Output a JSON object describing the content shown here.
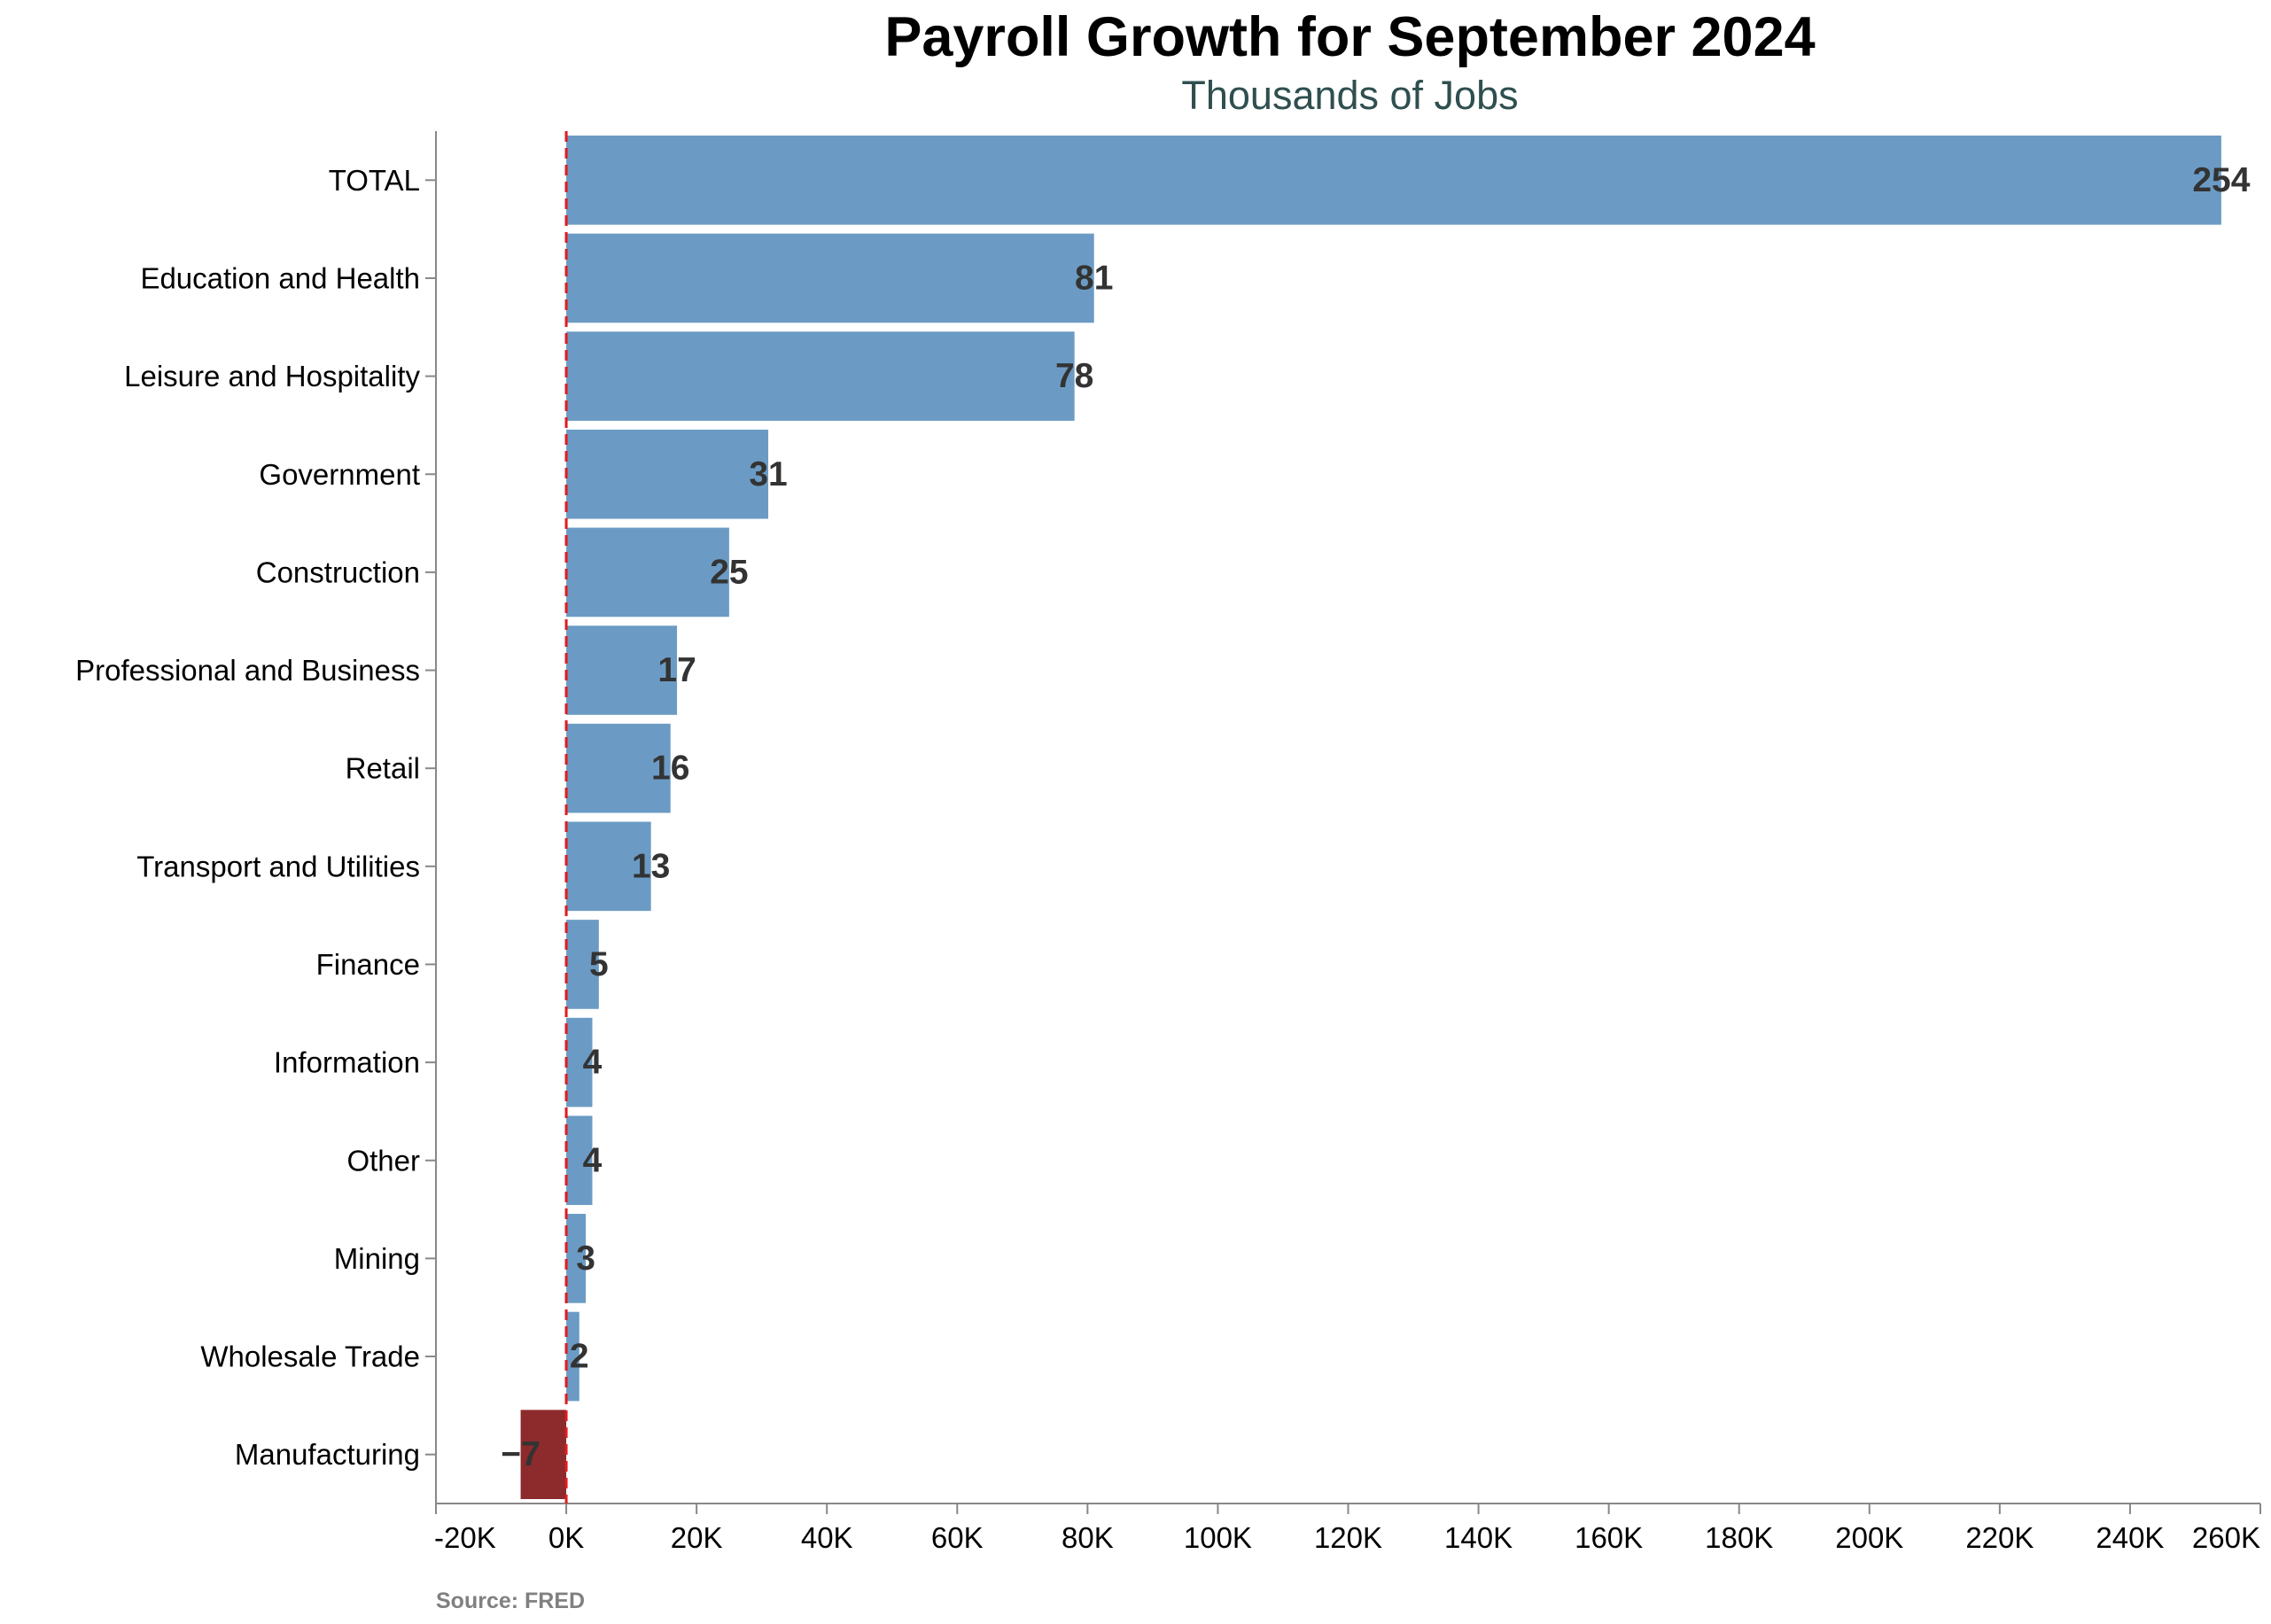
{
  "title": "Payroll Growth for September 2024",
  "subtitle": "Thousands of Jobs",
  "source": "Source: FRED",
  "colors": {
    "positive": "#6b9bc4",
    "negative": "#8c2a2c",
    "zero_line": "#e31a1c",
    "axis": "#888888",
    "label": "#333333"
  },
  "chart_data": {
    "type": "bar",
    "orientation": "horizontal",
    "title": "Payroll Growth for September 2024",
    "subtitle": "Thousands of Jobs",
    "categories": [
      "TOTAL",
      "Education and Health",
      "Leisure and Hospitality",
      "Government",
      "Construction",
      "Professional and Business",
      "Retail",
      "Transport and Utilities",
      "Finance",
      "Information",
      "Other",
      "Mining",
      "Wholesale Trade",
      "Manufacturing"
    ],
    "values": [
      254000,
      81000,
      78000,
      31000,
      25000,
      17000,
      16000,
      13000,
      5000,
      4000,
      4000,
      3000,
      2000,
      -7000
    ],
    "data_labels": [
      "254",
      "81",
      "78",
      "31",
      "25",
      "17",
      "16",
      "13",
      "5",
      "4",
      "4",
      "3",
      "2",
      "−7"
    ],
    "xlim": [
      -20000,
      260000
    ],
    "x_ticks": [
      -20000,
      0,
      20000,
      40000,
      60000,
      80000,
      100000,
      120000,
      140000,
      160000,
      180000,
      200000,
      220000,
      240000,
      260000
    ],
    "x_tick_labels": [
      "-20K",
      "0K",
      "20K",
      "40K",
      "60K",
      "80K",
      "100K",
      "120K",
      "140K",
      "160K",
      "180K",
      "200K",
      "220K",
      "240K",
      "260K"
    ],
    "zero_line": {
      "value": 0,
      "style": "dashed"
    },
    "grid": false,
    "legend": "none"
  }
}
